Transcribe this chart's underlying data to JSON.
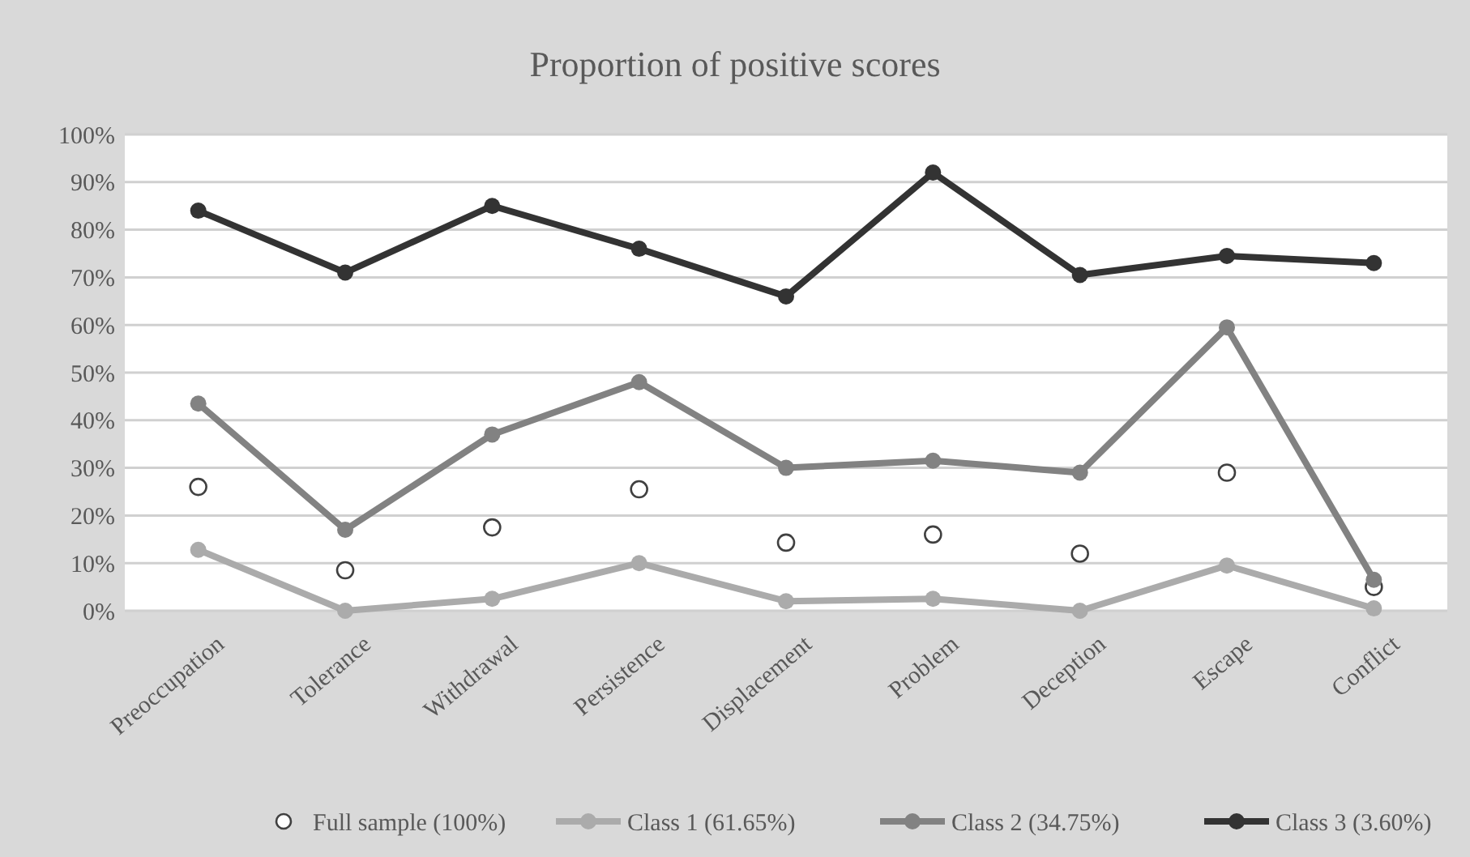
{
  "chart_data": {
    "type": "line",
    "title": "Proportion of positive scores",
    "categories": [
      "Preoccupation",
      "Tolerance",
      "Withdrawal",
      "Persistence",
      "Displacement",
      "Problem",
      "Deception",
      "Escape",
      "Conflict"
    ],
    "series": [
      {
        "name": "Full sample (100%)",
        "type": "scatter",
        "color": "#404040",
        "values": [
          26,
          8.5,
          17.5,
          25.5,
          14.3,
          16,
          12,
          29,
          5
        ]
      },
      {
        "name": "Class 1 (61.65%)",
        "color": "#ababab",
        "values": [
          12.8,
          0,
          2.5,
          10,
          2,
          2.5,
          0,
          9.5,
          0.5
        ]
      },
      {
        "name": "Class 2 (34.75%)",
        "color": "#828282",
        "values": [
          43.5,
          17,
          37,
          48,
          30,
          31.5,
          29,
          59.5,
          6.5
        ]
      },
      {
        "name": "Class 3 (3.60%)",
        "color": "#333333",
        "values": [
          84,
          71,
          85,
          76,
          66,
          92,
          70.5,
          74.5,
          73
        ]
      }
    ],
    "ylim": [
      0,
      100
    ],
    "yticks": [
      {
        "value": 0,
        "label": "0%"
      },
      {
        "value": 10,
        "label": "10%"
      },
      {
        "value": 20,
        "label": "20%"
      },
      {
        "value": 30,
        "label": "30%"
      },
      {
        "value": 40,
        "label": "40%"
      },
      {
        "value": 50,
        "label": "50%"
      },
      {
        "value": 60,
        "label": "60%"
      },
      {
        "value": 70,
        "label": "70%"
      },
      {
        "value": 80,
        "label": "80%"
      },
      {
        "value": 90,
        "label": "90%"
      },
      {
        "value": 100,
        "label": "100%"
      }
    ],
    "grid": "y",
    "legend": "bottom",
    "marker": "circle"
  }
}
